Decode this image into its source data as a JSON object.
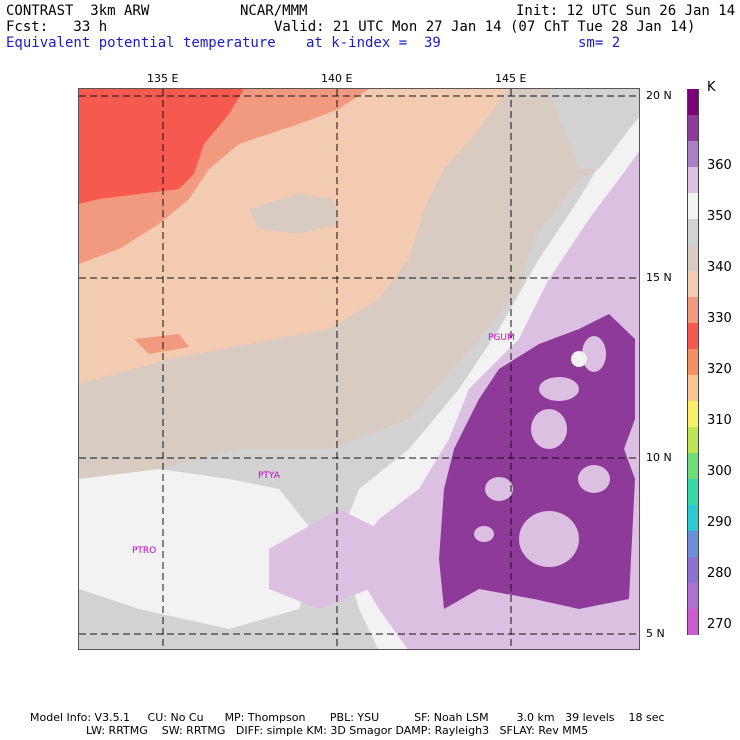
{
  "header": {
    "model": "CONTRAST  3km ARW",
    "org": "NCAR/MMM",
    "init": "Init: 12 UTC Sun 26 Jan 14",
    "fcst": "Fcst:   33 h",
    "valid": "Valid: 21 UTC Mon 27 Jan 14 (07 ChT Tue 28 Jan 14)",
    "field": "Equivalent potential temperature",
    "level": "at k-index =  39",
    "smooth": "sm= 2"
  },
  "map": {
    "lon_labels": [
      "135 E",
      "140 E",
      "145 E"
    ],
    "lat_labels": [
      "20 N",
      "15 N",
      "10 N",
      "5 N"
    ],
    "stations": [
      "PGUM",
      "PTYA",
      "PTRO"
    ]
  },
  "colorbar": {
    "unit": "K",
    "labels": [
      "360",
      "350",
      "340",
      "330",
      "320",
      "310",
      "300",
      "290",
      "280",
      "270"
    ],
    "colors": [
      "#7a0078",
      "#8e3a98",
      "#ab80c4",
      "#dcc0e2",
      "#f2f2f2",
      "#d2d2d2",
      "#d8cbc2",
      "#f2cbb0",
      "#f29a80",
      "#f65a4e",
      "#f49068",
      "#f8c690",
      "#f8ee68",
      "#bee456",
      "#70dc78",
      "#38d8a8",
      "#30c8d0",
      "#6a8ed8",
      "#8e72d2",
      "#b070d0",
      "#cc5ad0"
    ]
  },
  "footer": {
    "line1": "Model Info: V3.5.1     CU: No Cu      MP: Thompson       PBL: YSU          SF: Noah LSM        3.0 km   39 levels    18 sec",
    "line2": "LW: RRTMG    SW: RRTMG   DIFF: simple KM: 3D Smagor DAMP: Rayleigh3   SFLAY: Rev MM5"
  }
}
